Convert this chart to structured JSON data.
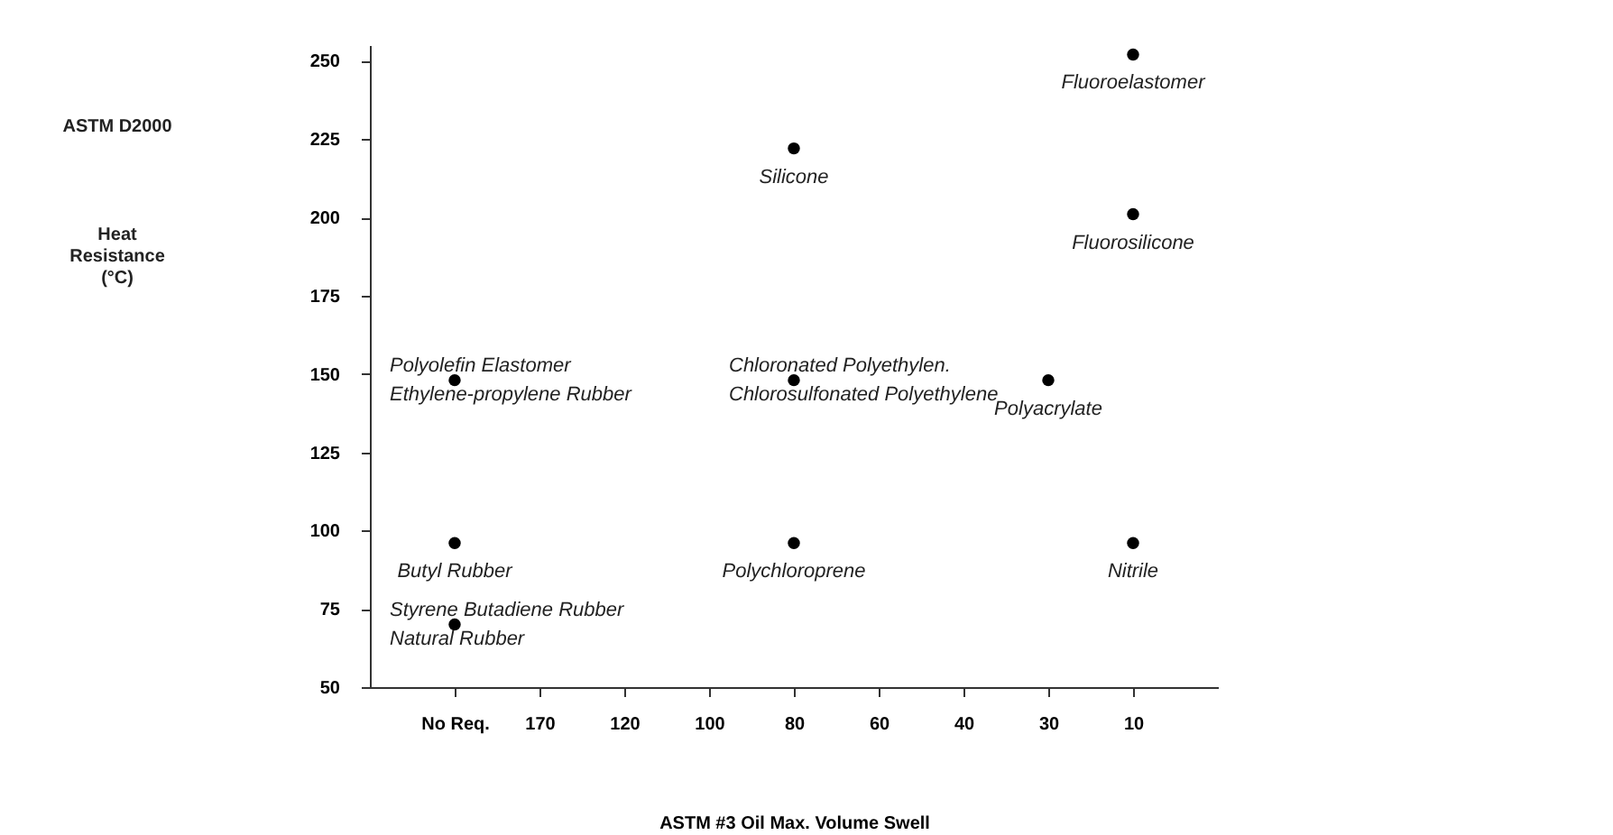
{
  "chart_data": {
    "type": "scatter",
    "xlabel": "ASTM #3 Oil Max. Volume Swell",
    "categories": [
      "No Req.",
      "170",
      "120",
      "100",
      "80",
      "60",
      "40",
      "30",
      "10"
    ],
    "series": [
      {
        "color": "#000000",
        "x": [
          "10",
          "80",
          "10",
          "No Req.",
          "80",
          "30",
          "No Req.",
          "80",
          "10",
          "No Req."
        ],
        "values": [
          252,
          222,
          201,
          148,
          148,
          148,
          96,
          96,
          96,
          70
        ]
      }
    ],
    "ylim": [
      50,
      255
    ],
    "yticks": [
      50,
      75,
      100,
      125,
      150,
      175,
      200,
      225,
      250
    ],
    "grid": false,
    "marker": "circle",
    "annotations": [
      "ASTM D2000",
      "Heat Resistance (°C)",
      {
        "text": "Fluoroelastomer",
        "x": "10",
        "y": 252
      },
      {
        "text": "Silicone",
        "x": "80",
        "y": 222
      },
      {
        "text": "Fluorosilicone",
        "x": "10",
        "y": 201
      },
      {
        "text": "Polyolefin Elastomer",
        "x": "No Req.",
        "y": 148
      },
      {
        "text": "Ethylene-propylene Rubber",
        "x": "No Req.",
        "y": 148
      },
      {
        "text": "Chloronated Polyethylen.",
        "x": "80",
        "y": 148
      },
      {
        "text": "Chlorosulfonated Polyethylene",
        "x": "80",
        "y": 148
      },
      {
        "text": "Polyacrylate",
        "x": "30",
        "y": 148
      },
      {
        "text": "Butyl Rubber",
        "x": "No Req.",
        "y": 96
      },
      {
        "text": "Polychloroprene",
        "x": "80",
        "y": 96
      },
      {
        "text": "Nitrile",
        "x": "10",
        "y": 96
      },
      {
        "text": "Styrene Butadiene Rubber",
        "x": "No Req.",
        "y": 70
      },
      {
        "text": "Natural Rubber",
        "x": "No Req.",
        "y": 70
      }
    ]
  }
}
